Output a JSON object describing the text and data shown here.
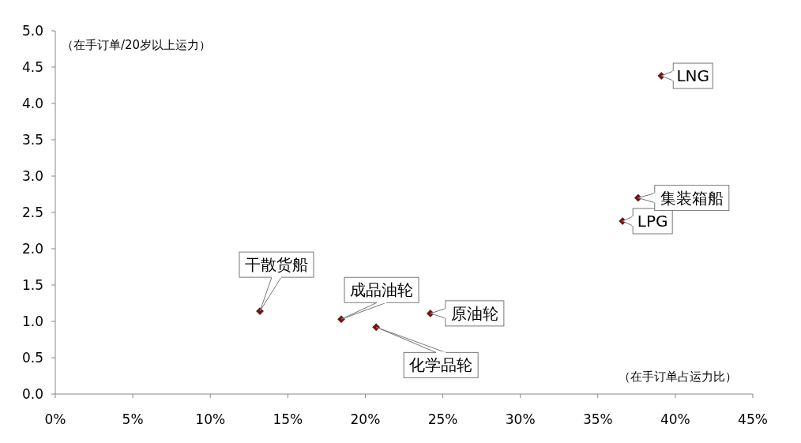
{
  "chart_data": {
    "type": "scatter",
    "xlabel": "（在手订单占运力比）",
    "ylabel": "（在手订单/20岁以上运力）",
    "xlim": [
      0,
      45
    ],
    "ylim": [
      0,
      5
    ],
    "xticks": [
      {
        "value": 0,
        "label": "0%"
      },
      {
        "value": 5,
        "label": "5%"
      },
      {
        "value": 10,
        "label": "10%"
      },
      {
        "value": 15,
        "label": "15%"
      },
      {
        "value": 20,
        "label": "20%"
      },
      {
        "value": 25,
        "label": "25%"
      },
      {
        "value": 30,
        "label": "30%"
      },
      {
        "value": 35,
        "label": "35%"
      },
      {
        "value": 40,
        "label": "40%"
      },
      {
        "value": 45,
        "label": "45%"
      }
    ],
    "yticks": [
      {
        "value": 0,
        "label": "0.0"
      },
      {
        "value": 0.5,
        "label": "0.5"
      },
      {
        "value": 1,
        "label": "1.0"
      },
      {
        "value": 1.5,
        "label": "1.5"
      },
      {
        "value": 2,
        "label": "2.0"
      },
      {
        "value": 2.5,
        "label": "2.5"
      },
      {
        "value": 3,
        "label": "3.0"
      },
      {
        "value": 3.5,
        "label": "3.5"
      },
      {
        "value": 4,
        "label": "4.0"
      },
      {
        "value": 4.5,
        "label": "4.5"
      },
      {
        "value": 5,
        "label": "5.0"
      }
    ],
    "series": [
      {
        "color": "#7b1010",
        "x": [
          13.2,
          18.45,
          20.7,
          24.2,
          36.6,
          37.6,
          39.1
        ],
        "values": [
          1.14,
          1.03,
          0.92,
          1.11,
          2.38,
          2.7,
          4.38
        ]
      }
    ],
    "marker": "diamond",
    "grid": false,
    "annotations": [
      {
        "text": "干散货船",
        "x": 13.2,
        "y": 1.14
      },
      {
        "text": "成品油轮",
        "x": 18.45,
        "y": 1.03
      },
      {
        "text": "化学品轮",
        "x": 20.7,
        "y": 0.92
      },
      {
        "text": "原油轮",
        "x": 24.2,
        "y": 1.11
      },
      {
        "text": "LPG",
        "x": 36.6,
        "y": 2.38
      },
      {
        "text": "集装箱船",
        "x": 37.6,
        "y": 2.7
      },
      {
        "text": "LNG",
        "x": 39.1,
        "y": 4.38
      }
    ]
  }
}
